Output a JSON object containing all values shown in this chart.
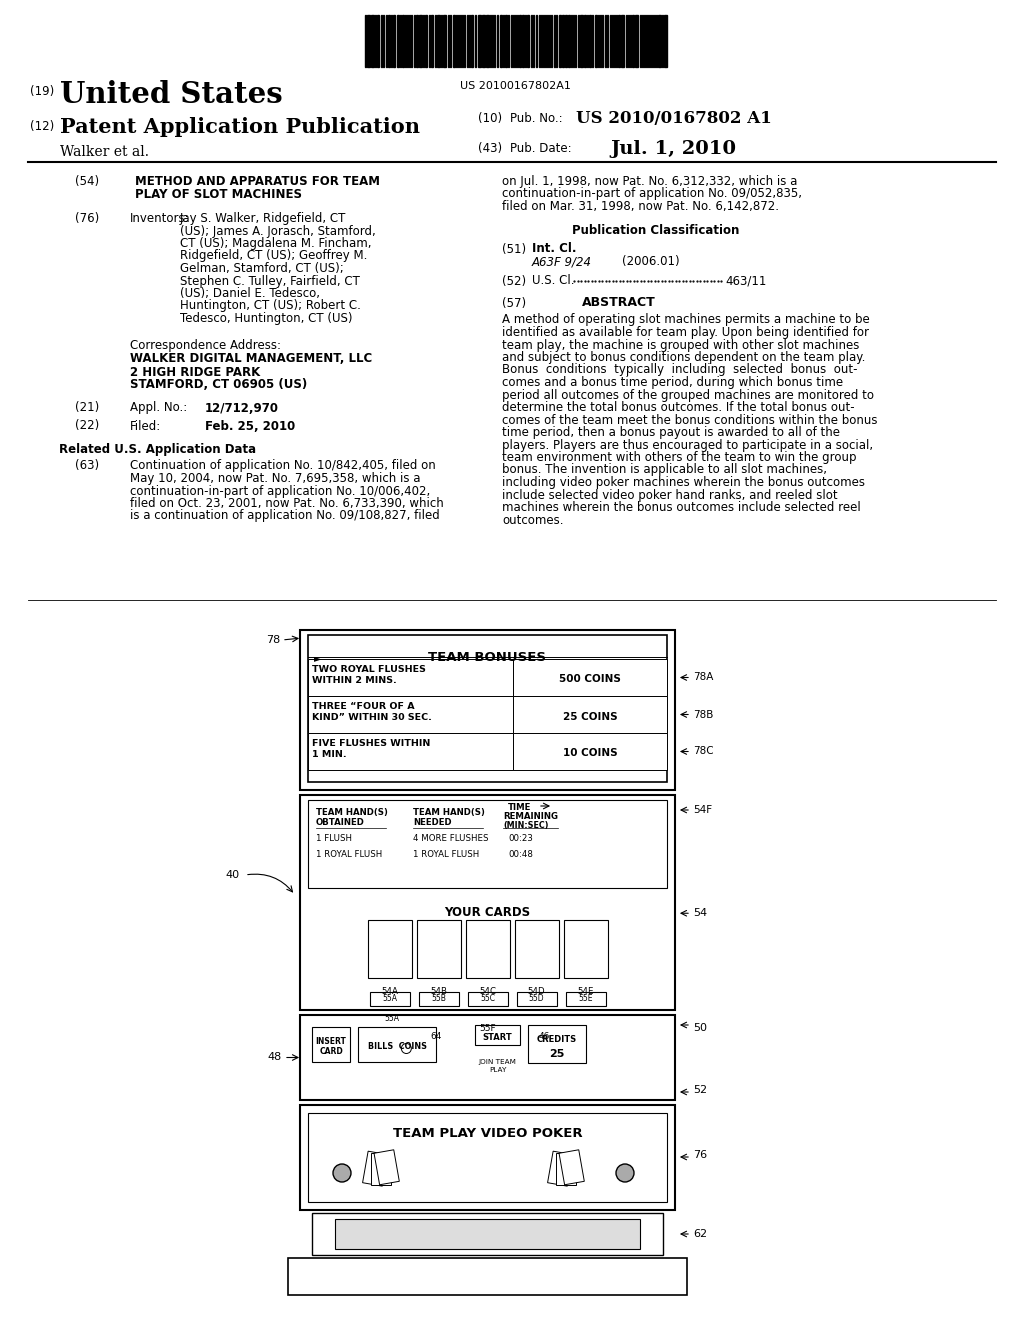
{
  "bg_color": "#ffffff",
  "text_color": "#000000",
  "barcode_text": "US 20100167802A1",
  "pub_number": "US 2010/0167802 A1",
  "pub_date": "Jul. 1, 2010",
  "country": "United States",
  "patent_type": "Patent Application Publication",
  "assignee": "Walker et al.",
  "title54": [
    "METHOD AND APPARATUS FOR TEAM",
    "PLAY OF SLOT MACHINES"
  ],
  "inv_label": "Inventors:",
  "inv_lines": [
    [
      "Jay S. Walker",
      ", Ridgefield, CT"
    ],
    [
      "(US); ",
      "James A. Jorasch",
      ", Stamford,"
    ],
    [
      "CT (US); ",
      "Magdalena M. Fincham",
      ","
    ],
    [
      "Ridgefield, CT (US); ",
      "Geoffrey M."
    ],
    [
      "Gelman",
      ", Stamford, CT (US);"
    ],
    [
      "Stephen C. Tulley",
      ", Fairfield, CT"
    ],
    [
      "(US); ",
      "Daniel E. Tedesco",
      ","
    ],
    [
      "Huntington, CT (US); ",
      "Robert C."
    ],
    [
      "Tedesco",
      ", Huntington, CT (US)"
    ]
  ],
  "corr_lines": [
    "Correspondence Address:",
    "WALKER DIGITAL MANAGEMENT, LLC",
    "2 HIGH RIDGE PARK",
    "STAMFORD, CT 06905 (US)"
  ],
  "appl_no": "12/712,970",
  "filed": "Feb. 25, 2010",
  "related_title": "Related U.S. Application Data",
  "cont63_lines": [
    "Continuation of application No. 10/842,405, filed on",
    "May 10, 2004, now Pat. No. 7,695,358, which is a",
    "continuation-in-part of application No. 10/006,402,",
    "filed on Oct. 23, 2001, now Pat. No. 6,733,390, which",
    "is a continuation of application No. 09/108,827, filed"
  ],
  "right_cont_lines": [
    "on Jul. 1, 1998, now Pat. No. 6,312,332, which is a",
    "continuation-in-part of application No. 09/052,835,",
    "filed on Mar. 31, 1998, now Pat. No. 6,142,872."
  ],
  "pub_class_title": "Publication Classification",
  "int_cl_label": "Int. Cl.",
  "int_cl_val": "A63F 9/24",
  "int_cl_year": "(2006.01)",
  "usc_label": "U.S. Cl.",
  "usc_val": "463/11",
  "abstract_title": "ABSTRACT",
  "abstract_lines": [
    "A method of operating slot machines permits a machine to be",
    "identified as available for team play. Upon being identified for",
    "team play, the machine is grouped with other slot machines",
    "and subject to bonus conditions dependent on the team play.",
    "Bonus  conditions  typically  including  selected  bonus  out-",
    "comes and a bonus time period, during which bonus time",
    "period all outcomes of the grouped machines are monitored to",
    "determine the total bonus outcomes. If the total bonus out-",
    "comes of the team meet the bonus conditions within the bonus",
    "time period, then a bonus payout is awarded to all of the",
    "players. Players are thus encouraged to participate in a social,",
    "team environment with others of the team to win the group",
    "bonus. The invention is applicable to all slot machines,",
    "including video poker machines wherein the bonus outcomes",
    "include selected video poker hand ranks, and reeled slot",
    "machines wherein the bonus outcomes include selected reel",
    "outcomes."
  ]
}
